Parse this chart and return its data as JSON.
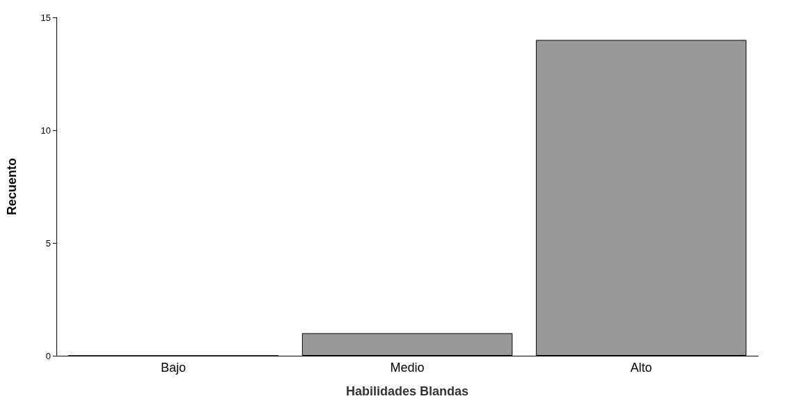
{
  "chart_data": {
    "type": "bar",
    "xlabel": "Habilidades Blandas",
    "ylabel": "Recuento",
    "categories": [
      "Bajo",
      "Medio",
      "Alto"
    ],
    "values": [
      0,
      1,
      14
    ],
    "color": "#999999",
    "ylim": [
      0,
      15
    ],
    "yticks": [
      0,
      5,
      10,
      15
    ],
    "grid": false
  }
}
